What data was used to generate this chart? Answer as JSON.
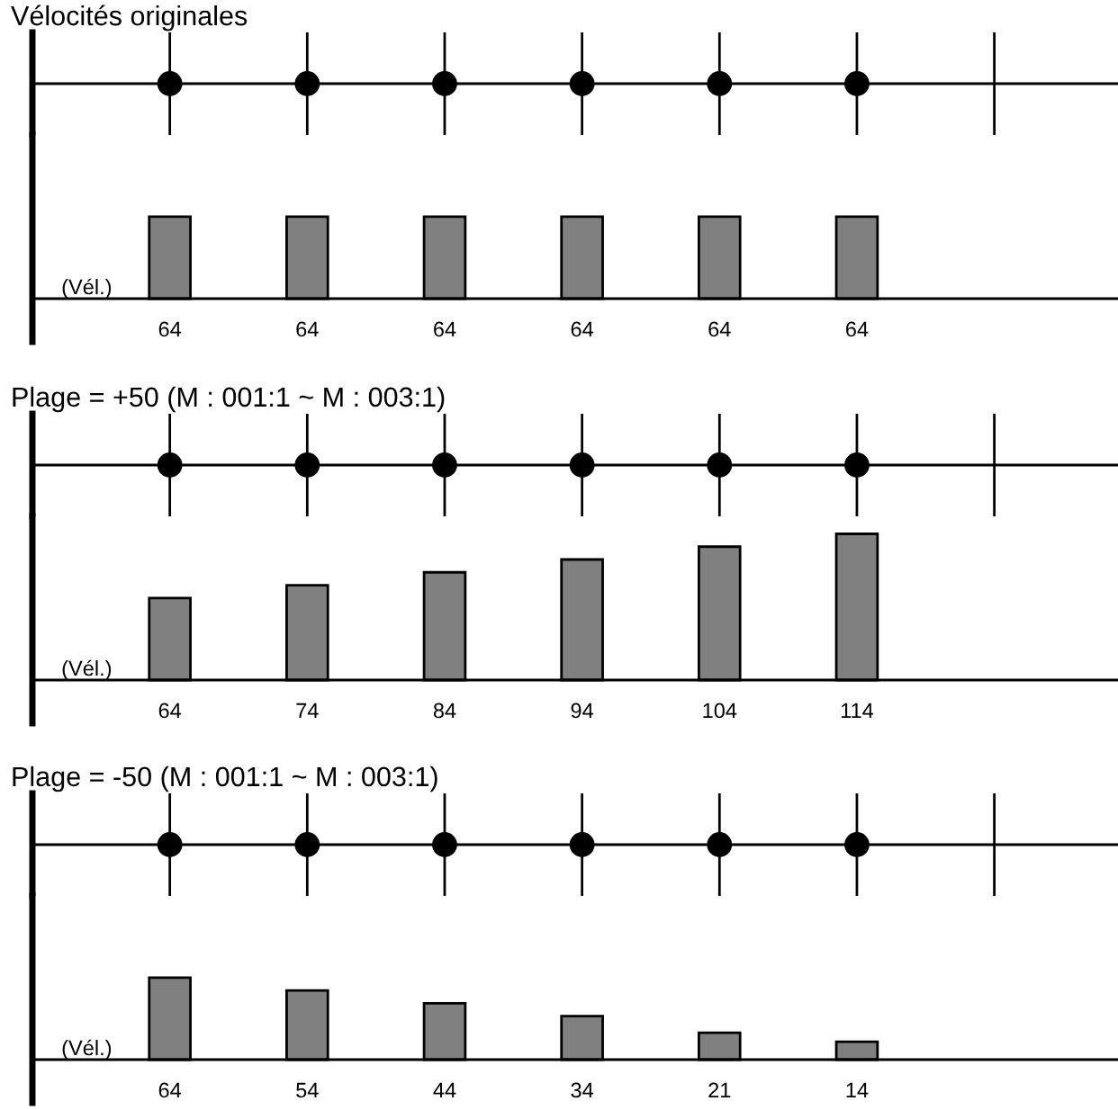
{
  "chart_data": [
    {
      "type": "bar",
      "title": "Vélocités originales",
      "ylabel": "(Vél.)",
      "categories": [
        null,
        null,
        null,
        null,
        null,
        null
      ],
      "values": [
        64,
        64,
        64,
        64,
        64,
        64
      ],
      "color": "#808080",
      "data_labels": true
    },
    {
      "type": "bar",
      "title": "Plage = +50 (M : 001:1 ~ M : 003:1)",
      "ylabel": "(Vél.)",
      "categories": [
        null,
        null,
        null,
        null,
        null,
        null
      ],
      "values": [
        64,
        74,
        84,
        94,
        104,
        114
      ],
      "color": "#808080",
      "data_labels": true
    },
    {
      "type": "bar",
      "title": "Plage = -50 (M : 001:1 ~ M : 003:1)",
      "ylabel": "(Vél.)",
      "categories": [
        null,
        null,
        null,
        null,
        null,
        null
      ],
      "values": [
        64,
        54,
        44,
        34,
        21,
        14
      ],
      "color": "#808080",
      "data_labels": true
    }
  ]
}
